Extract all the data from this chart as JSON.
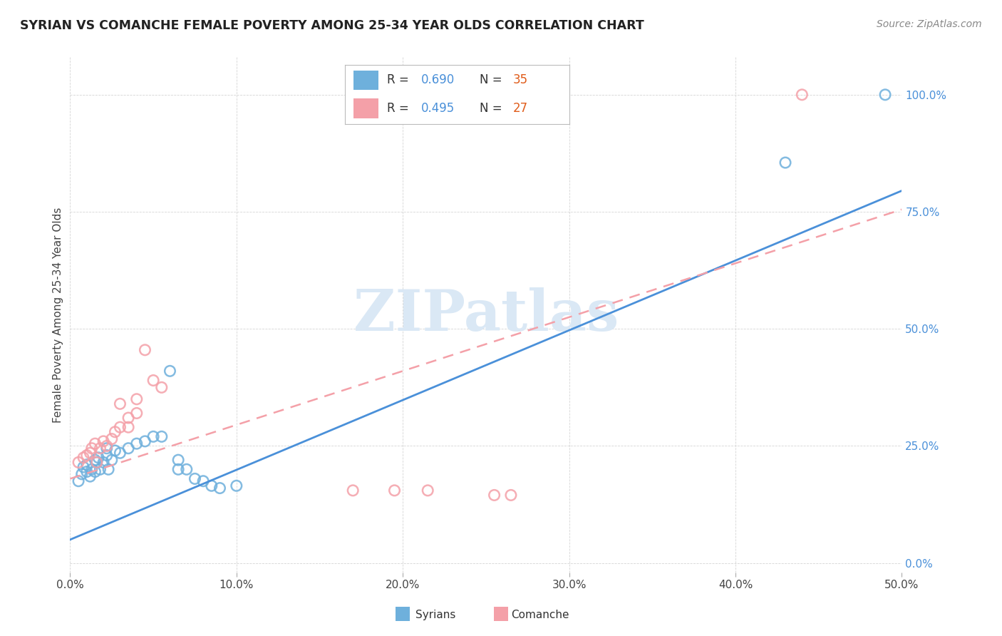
{
  "title": "SYRIAN VS COMANCHE FEMALE POVERTY AMONG 25-34 YEAR OLDS CORRELATION CHART",
  "source": "Source: ZipAtlas.com",
  "ylabel": "Female Poverty Among 25-34 Year Olds",
  "xlim": [
    0.0,
    0.5
  ],
  "ylim": [
    -0.02,
    1.08
  ],
  "xticks": [
    0.0,
    0.1,
    0.2,
    0.3,
    0.4,
    0.5
  ],
  "yticks": [
    0.0,
    0.25,
    0.5,
    0.75,
    1.0
  ],
  "xtick_labels": [
    "0.0%",
    "10.0%",
    "20.0%",
    "30.0%",
    "40.0%",
    "50.0%"
  ],
  "ytick_labels": [
    "0.0%",
    "25.0%",
    "50.0%",
    "75.0%",
    "100.0%"
  ],
  "syrian_color": "#6eb0dc",
  "comanche_color": "#f4a0a8",
  "syrian_line_color": "#4a90d9",
  "comanche_line_color": "#f4a0a8",
  "legend_R_color": "#4a90d9",
  "legend_N_color": "#e05c1a",
  "ytick_color": "#4a90d9",
  "watermark_color": "#dae8f5",
  "syrian_R": "0.690",
  "syrian_N": "35",
  "comanche_R": "0.495",
  "comanche_N": "27",
  "syrian_scatter": [
    [
      0.005,
      0.175
    ],
    [
      0.007,
      0.19
    ],
    [
      0.008,
      0.205
    ],
    [
      0.01,
      0.195
    ],
    [
      0.01,
      0.21
    ],
    [
      0.012,
      0.185
    ],
    [
      0.013,
      0.2
    ],
    [
      0.015,
      0.195
    ],
    [
      0.015,
      0.22
    ],
    [
      0.016,
      0.215
    ],
    [
      0.017,
      0.225
    ],
    [
      0.018,
      0.2
    ],
    [
      0.02,
      0.215
    ],
    [
      0.022,
      0.23
    ],
    [
      0.022,
      0.245
    ],
    [
      0.023,
      0.2
    ],
    [
      0.025,
      0.22
    ],
    [
      0.027,
      0.24
    ],
    [
      0.03,
      0.235
    ],
    [
      0.035,
      0.245
    ],
    [
      0.04,
      0.255
    ],
    [
      0.045,
      0.26
    ],
    [
      0.05,
      0.27
    ],
    [
      0.055,
      0.27
    ],
    [
      0.06,
      0.41
    ],
    [
      0.065,
      0.22
    ],
    [
      0.065,
      0.2
    ],
    [
      0.07,
      0.2
    ],
    [
      0.075,
      0.18
    ],
    [
      0.08,
      0.175
    ],
    [
      0.085,
      0.165
    ],
    [
      0.09,
      0.16
    ],
    [
      0.1,
      0.165
    ],
    [
      0.43,
      0.855
    ],
    [
      0.49,
      1.0
    ]
  ],
  "comanche_scatter": [
    [
      0.005,
      0.215
    ],
    [
      0.008,
      0.225
    ],
    [
      0.01,
      0.23
    ],
    [
      0.012,
      0.235
    ],
    [
      0.013,
      0.245
    ],
    [
      0.015,
      0.255
    ],
    [
      0.016,
      0.215
    ],
    [
      0.018,
      0.245
    ],
    [
      0.02,
      0.26
    ],
    [
      0.022,
      0.25
    ],
    [
      0.025,
      0.265
    ],
    [
      0.027,
      0.28
    ],
    [
      0.03,
      0.29
    ],
    [
      0.03,
      0.34
    ],
    [
      0.035,
      0.29
    ],
    [
      0.035,
      0.31
    ],
    [
      0.04,
      0.32
    ],
    [
      0.04,
      0.35
    ],
    [
      0.045,
      0.455
    ],
    [
      0.05,
      0.39
    ],
    [
      0.055,
      0.375
    ],
    [
      0.17,
      0.155
    ],
    [
      0.195,
      0.155
    ],
    [
      0.215,
      0.155
    ],
    [
      0.255,
      0.145
    ],
    [
      0.265,
      0.145
    ],
    [
      0.44,
      1.0
    ]
  ],
  "syrian_line_x": [
    0.0,
    0.5
  ],
  "syrian_line_y": [
    0.05,
    0.795
  ],
  "comanche_line_x": [
    0.0,
    0.5
  ],
  "comanche_line_y": [
    0.18,
    0.755
  ],
  "background_color": "#ffffff",
  "grid_color": "#d0d0d0"
}
